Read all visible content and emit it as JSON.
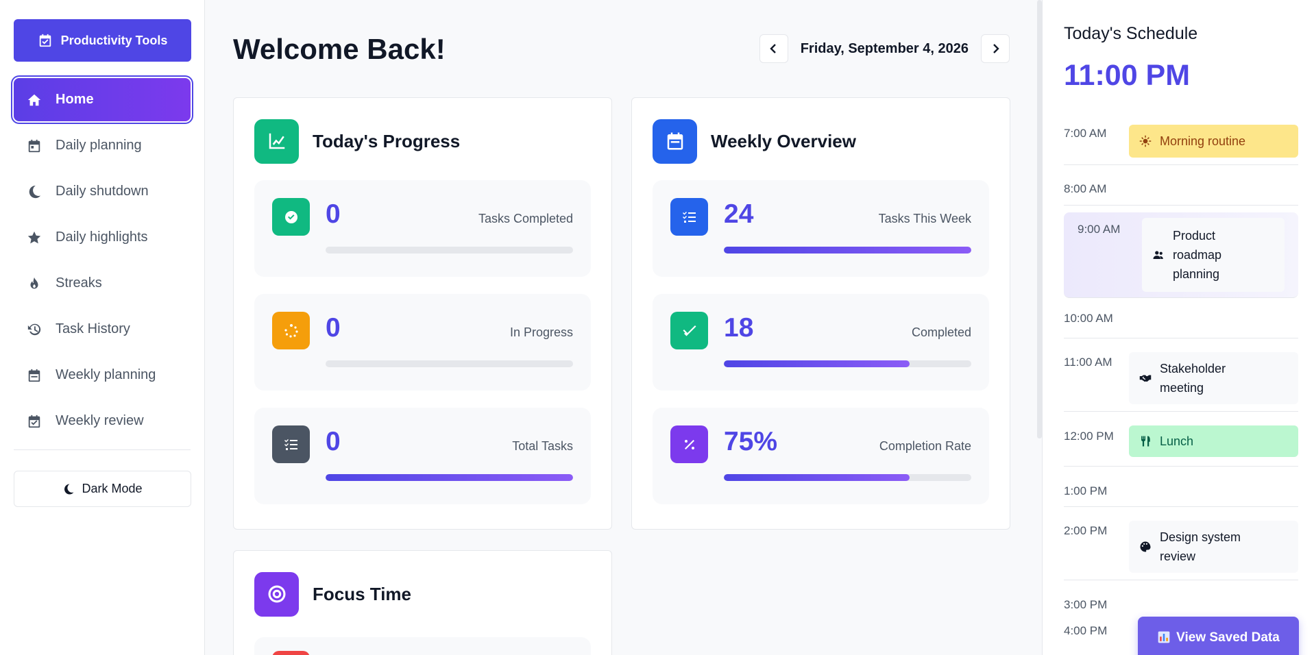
{
  "sidebar": {
    "brand": "Productivity Tools",
    "items": [
      {
        "label": "Home",
        "icon": "home-icon"
      },
      {
        "label": "Daily planning",
        "icon": "calendar-icon"
      },
      {
        "label": "Daily shutdown",
        "icon": "moon-icon"
      },
      {
        "label": "Daily highlights",
        "icon": "star-icon"
      },
      {
        "label": "Streaks",
        "icon": "flame-icon"
      },
      {
        "label": "Task History",
        "icon": "history-icon"
      },
      {
        "label": "Weekly planning",
        "icon": "calendar-icon"
      },
      {
        "label": "Weekly review",
        "icon": "calendar-check-icon"
      }
    ],
    "active_index": 0,
    "dark_mode_label": "Dark Mode"
  },
  "main": {
    "welcome": "Welcome Back!",
    "date": "Friday, September 4, 2026"
  },
  "progress_card": {
    "title": "Today's Progress",
    "stats": [
      {
        "value": "0",
        "label": "Tasks Completed",
        "progress": 0
      },
      {
        "value": "0",
        "label": "In Progress",
        "progress": 0
      },
      {
        "value": "0",
        "label": "Total Tasks",
        "progress": 1.0
      }
    ]
  },
  "weekly_card": {
    "title": "Weekly Overview",
    "stats": [
      {
        "value": "24",
        "label": "Tasks This Week",
        "progress": 1.0
      },
      {
        "value": "18",
        "label": "Completed",
        "progress": 0.75
      },
      {
        "value": "75%",
        "label": "Completion Rate",
        "progress": 0.75
      }
    ]
  },
  "focus_card": {
    "title": "Focus Time"
  },
  "schedule": {
    "title": "Today's Schedule",
    "current_time": "11:00 PM",
    "slots": [
      {
        "time": "7:00 AM",
        "event": "Morning routine",
        "icon": "sun-icon"
      },
      {
        "time": "8:00 AM",
        "event": ""
      },
      {
        "time": "9:00 AM",
        "event": "Product roadmap planning",
        "icon": "users-icon"
      },
      {
        "time": "10:00 AM",
        "event": ""
      },
      {
        "time": "11:00 AM",
        "event": "Stakeholder meeting",
        "icon": "handshake-icon"
      },
      {
        "time": "12:00 PM",
        "event": "Lunch",
        "icon": "utensils-icon"
      },
      {
        "time": "1:00 PM",
        "event": ""
      },
      {
        "time": "2:00 PM",
        "event": "Design system review",
        "icon": "palette-icon"
      },
      {
        "time": "3:00 PM",
        "event": ""
      },
      {
        "time": "4:00 PM",
        "event": ""
      }
    ],
    "view_saved_label": "View Saved Data"
  },
  "colors": {
    "accent": "#4f46e5",
    "morning": "#fde68a",
    "lunch": "#bbf7d0",
    "green_icon": "#10b981",
    "orange_icon": "#f59e0b",
    "gray_icon": "#4b5563",
    "blue_icon": "#2563eb",
    "purple_icon": "#7c3aed"
  }
}
